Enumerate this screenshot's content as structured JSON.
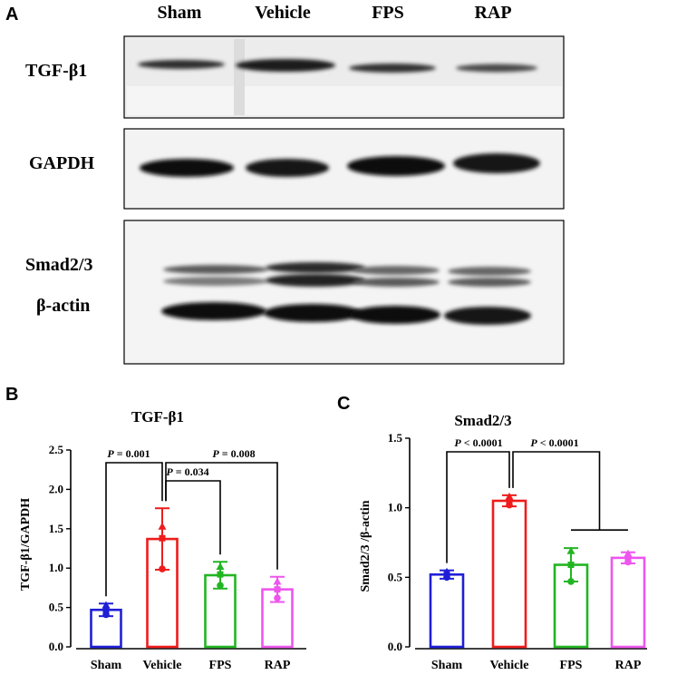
{
  "panels": {
    "a": "A",
    "b": "B",
    "c": "C"
  },
  "blot": {
    "columns": [
      "Sham",
      "Vehicle",
      "FPS",
      "RAP"
    ],
    "rows": [
      "TGF-β1",
      "GAPDH",
      "Smad2/3",
      "β-actin"
    ]
  },
  "colors": {
    "Sham": "#1f1fd6",
    "Vehicle": "#ee1c1c",
    "FPS": "#22b522",
    "RAP": "#ee55ee"
  },
  "chart_data": [
    {
      "type": "bar",
      "title": "TGF-β1",
      "ylabel": "TGF-β1/GAPDH",
      "xlabel": "",
      "categories": [
        "Sham",
        "Vehicle",
        "FPS",
        "RAP"
      ],
      "values": [
        0.47,
        1.37,
        0.91,
        0.73
      ],
      "error": [
        0.08,
        0.39,
        0.17,
        0.16
      ],
      "points": [
        [
          0.41,
          0.47,
          0.53
        ],
        [
          0.99,
          1.38,
          1.53
        ],
        [
          0.78,
          0.92,
          1.02
        ],
        [
          0.62,
          0.73,
          0.83
        ]
      ],
      "ylim": [
        0.0,
        2.5
      ],
      "yticks": [
        "0.0",
        "0.5",
        "1.0",
        "1.5",
        "2.0",
        "2.5"
      ],
      "annotations": [
        {
          "from": 0,
          "to": 1,
          "p": "P",
          "text": "= 0.001"
        },
        {
          "from": 1,
          "to": 3,
          "p": "P",
          "text": "= 0.008"
        },
        {
          "from": 1,
          "to": 2,
          "p": "P",
          "text": "= 0.034"
        }
      ]
    },
    {
      "type": "bar",
      "title": "Smad2/3",
      "ylabel": "Smad2/3 /β-actin",
      "xlabel": "",
      "categories": [
        "Sham",
        "Vehicle",
        "FPS",
        "RAP"
      ],
      "values": [
        0.52,
        1.05,
        0.59,
        0.64
      ],
      "error": [
        0.03,
        0.04,
        0.12,
        0.04
      ],
      "points": [
        [
          0.5,
          0.52,
          0.54
        ],
        [
          1.02,
          1.05,
          1.08
        ],
        [
          0.47,
          0.59,
          0.69
        ],
        [
          0.61,
          0.64,
          0.67
        ]
      ],
      "ylim": [
        0.0,
        1.5
      ],
      "yticks": [
        "0.0",
        "0.5",
        "1.0",
        "1.5"
      ],
      "annotations": [
        {
          "from": 0,
          "to": 1,
          "p": "P",
          "text": "< 0.0001"
        },
        {
          "from": 1,
          "to": [
            2,
            3
          ],
          "p": "P",
          "text": "< 0.0001"
        }
      ]
    }
  ]
}
